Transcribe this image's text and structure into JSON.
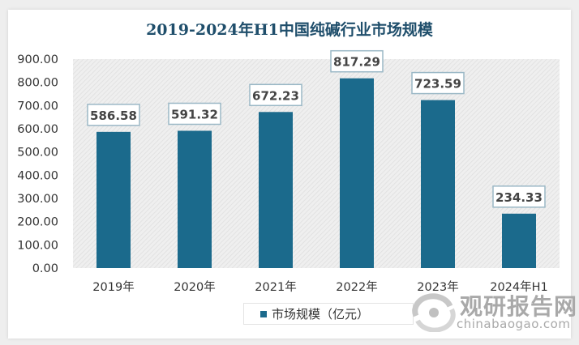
{
  "chart_data": {
    "type": "bar",
    "title": "2019-2024年H1中国纯碱行业市场规模",
    "categories": [
      "2019年",
      "2020年",
      "2021年",
      "2022年",
      "2023年",
      "2024年H1"
    ],
    "series": [
      {
        "name": "市场规模（亿元）",
        "values": [
          586.58,
          591.32,
          672.23,
          817.29,
          723.59,
          234.33
        ]
      }
    ],
    "data_labels": [
      "586.58",
      "591.32",
      "672.23",
      "817.29",
      "723.59",
      "234.33"
    ],
    "yticks": [
      "0.00",
      "100.00",
      "200.00",
      "300.00",
      "400.00",
      "500.00",
      "600.00",
      "700.00",
      "800.00",
      "900.00"
    ],
    "ylim": [
      0,
      900
    ],
    "xlabel": "",
    "ylabel": "",
    "grid": false,
    "legend": "bottom",
    "colors": {
      "bar": "#1b6a8c",
      "title": "#1f4e6b",
      "plot_bg": "#e9e9e9"
    }
  },
  "watermark": {
    "cn": "观研报告网",
    "en": "chinabaogao.com"
  }
}
